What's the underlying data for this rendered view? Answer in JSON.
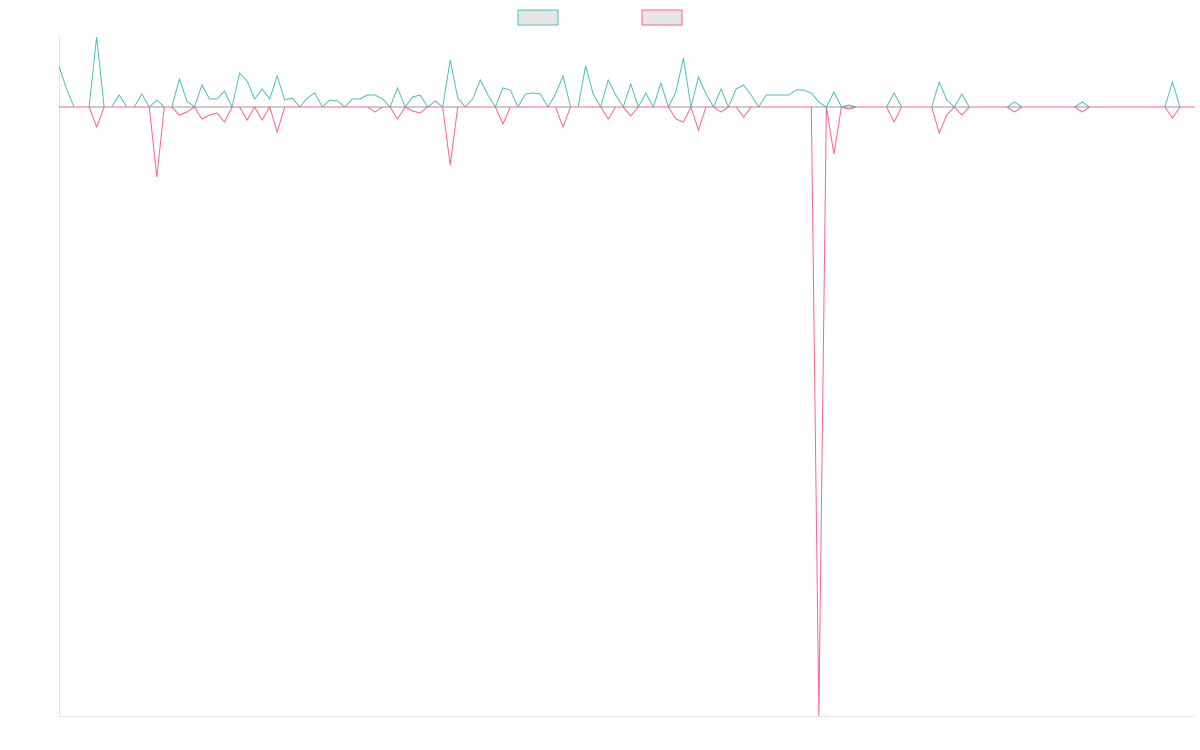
{
  "chart_data": {
    "type": "line",
    "ylim": [
      -609,
      71
    ],
    "legend": "top",
    "series": [
      {
        "color": "#4bc0c0",
        "values": [
          41,
          18,
          0,
          0,
          0,
          70,
          0,
          0,
          12,
          0,
          0,
          13,
          0,
          7,
          0,
          0,
          28,
          6,
          0,
          22,
          8,
          8,
          16,
          0,
          34,
          26,
          8,
          18,
          8,
          31,
          7,
          9,
          0,
          9,
          14,
          0,
          7,
          6,
          0,
          8,
          8,
          12,
          12,
          8,
          0,
          19,
          0,
          10,
          12,
          0,
          6,
          0,
          47,
          9,
          0,
          8,
          27,
          12,
          0,
          19,
          17,
          0,
          13,
          14,
          13,
          0,
          13,
          31,
          0,
          0,
          41,
          13,
          0,
          27,
          12,
          0,
          23,
          0,
          14,
          0,
          24,
          0,
          15,
          49,
          0,
          30,
          13,
          0,
          18,
          0,
          18,
          22,
          12,
          0,
          12,
          12,
          12,
          12,
          17,
          17,
          14,
          5,
          0,
          15,
          0,
          2,
          0,
          0,
          0,
          0,
          0,
          14,
          0,
          0,
          0,
          0,
          0,
          25,
          7,
          0,
          13,
          0,
          0,
          0,
          0,
          0,
          0,
          5,
          0,
          0,
          0,
          0,
          0,
          0,
          0,
          0,
          5,
          0,
          0,
          0,
          0,
          0,
          0,
          0,
          0,
          0,
          0,
          0,
          25,
          0,
          0,
          0
        ]
      },
      {
        "color": "#ff6384",
        "values": [
          0,
          0,
          0,
          0,
          0,
          -20,
          0,
          0,
          0,
          0,
          0,
          0,
          0,
          -70,
          0,
          0,
          -8,
          -5,
          0,
          -12,
          -8,
          -6,
          -15,
          0,
          0,
          -13,
          0,
          -13,
          0,
          -25,
          0,
          0,
          0,
          0,
          0,
          0,
          0,
          0,
          0,
          0,
          0,
          0,
          -5,
          0,
          0,
          -12,
          0,
          -4,
          -6,
          0,
          0,
          0,
          -58,
          0,
          0,
          0,
          0,
          0,
          0,
          -17,
          0,
          0,
          0,
          0,
          0,
          0,
          0,
          -20,
          0,
          0,
          0,
          0,
          0,
          -12,
          0,
          0,
          -9,
          0,
          0,
          0,
          0,
          0,
          -12,
          -15,
          0,
          -23,
          0,
          0,
          -5,
          0,
          0,
          -10,
          0,
          0,
          0,
          0,
          0,
          0,
          0,
          0,
          0,
          -609,
          0,
          -47,
          0,
          -2,
          0,
          0,
          0,
          0,
          0,
          -15,
          0,
          0,
          0,
          0,
          0,
          -26,
          -8,
          0,
          -8,
          0,
          0,
          0,
          0,
          0,
          0,
          -5,
          0,
          0,
          0,
          0,
          0,
          0,
          0,
          0,
          -5,
          0,
          0,
          0,
          0,
          0,
          0,
          0,
          0,
          0,
          0,
          0,
          -11,
          0,
          0,
          0
        ]
      }
    ]
  }
}
